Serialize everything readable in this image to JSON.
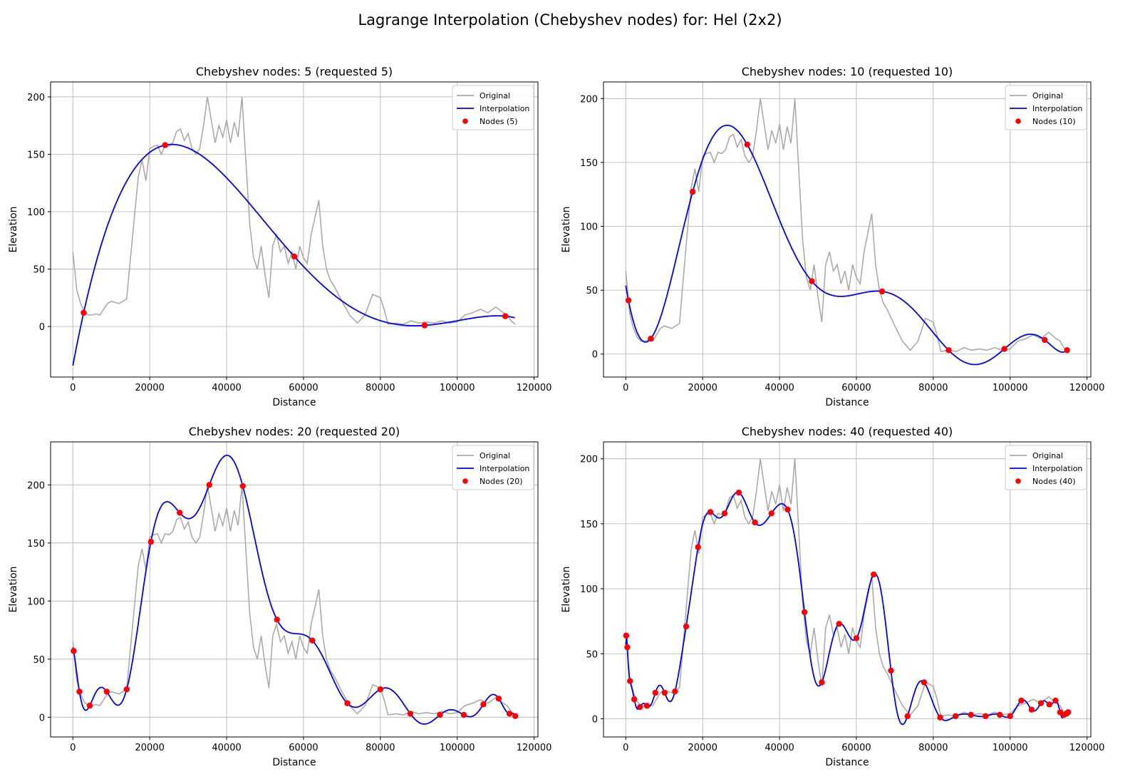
{
  "figure": {
    "title": "Lagrange Interpolation (Chebyshev nodes) for: Hel (2x2)"
  },
  "colors": {
    "original": "#aaaaaa",
    "interpolation": "#0000ff",
    "nodes": "#ff0000",
    "grid": "#b0b0b0"
  },
  "chart_data": [
    {
      "type": "line",
      "title": "Chebyshev nodes: 5 (requested 5)",
      "xlabel": "Distance",
      "ylabel": "Elevation",
      "xlim": [
        -5800,
        121000
      ],
      "ylim": [
        -44,
        213
      ],
      "xticks": [
        0,
        20000,
        40000,
        60000,
        80000,
        100000,
        120000
      ],
      "yticks": [
        0,
        50,
        100,
        150,
        200
      ],
      "grid": true,
      "legend": "top-right",
      "legend_entries": [
        "Original",
        "Interpolation",
        "Nodes (5)"
      ],
      "original": {
        "x": [
          0,
          1000,
          2000,
          3000,
          4000,
          5000,
          6000,
          7000,
          8000,
          9000,
          10000,
          12000,
          14000,
          15000,
          16000,
          17000,
          18000,
          19000,
          20000,
          21000,
          22000,
          23000,
          24000,
          25000,
          26000,
          27000,
          28000,
          29000,
          30000,
          31000,
          32000,
          33000,
          34000,
          35000,
          36000,
          37000,
          38000,
          39000,
          40000,
          41000,
          42000,
          43000,
          44000,
          45000,
          46000,
          47000,
          48000,
          49000,
          50000,
          51000,
          52000,
          53000,
          54000,
          55000,
          56000,
          57000,
          58000,
          59000,
          60000,
          61000,
          62000,
          63000,
          64000,
          65000,
          66000,
          67000,
          68000,
          70000,
          72000,
          74000,
          76000,
          78000,
          80000,
          81000,
          82000,
          84000,
          86000,
          88000,
          90000,
          92000,
          94000,
          96000,
          98000,
          100000,
          102000,
          104000,
          106000,
          108000,
          110000,
          112000,
          113000,
          114000,
          115000
        ],
        "y": [
          65,
          32,
          20,
          13,
          10,
          10,
          11,
          10,
          15,
          20,
          22,
          20,
          24,
          60,
          95,
          130,
          145,
          127,
          155,
          157,
          158,
          150,
          158,
          157,
          160,
          170,
          172,
          162,
          168,
          155,
          150,
          155,
          175,
          200,
          180,
          160,
          175,
          165,
          180,
          160,
          178,
          165,
          200,
          145,
          90,
          60,
          50,
          70,
          45,
          25,
          70,
          80,
          65,
          70,
          55,
          65,
          50,
          70,
          60,
          55,
          80,
          95,
          110,
          70,
          50,
          40,
          35,
          22,
          10,
          3,
          10,
          28,
          25,
          15,
          2,
          3,
          2,
          5,
          3,
          4,
          3,
          5,
          3,
          4,
          10,
          12,
          15,
          12,
          17,
          12,
          10,
          5,
          2
        ]
      },
      "nodes": {
        "x": [
          2800,
          24000,
          57600,
          91500,
          112500
        ],
        "y": [
          12,
          158,
          61,
          1,
          9
        ]
      }
    },
    {
      "type": "line",
      "title": "Chebyshev nodes: 10 (requested 10)",
      "xlabel": "Distance",
      "ylabel": "Elevation",
      "xlim": [
        -5800,
        121000
      ],
      "ylim": [
        -18,
        213
      ],
      "xticks": [
        0,
        20000,
        40000,
        60000,
        80000,
        100000,
        120000
      ],
      "yticks": [
        0,
        50,
        100,
        150,
        200
      ],
      "grid": true,
      "legend": "top-right",
      "legend_entries": [
        "Original",
        "Interpolation",
        "Nodes (10)"
      ],
      "nodes": {
        "x": [
          700,
          6500,
          17400,
          31600,
          48400,
          66700,
          84000,
          98500,
          109000,
          114800
        ],
        "y": [
          42,
          12,
          127,
          164,
          57,
          49,
          3,
          4,
          11,
          3
        ]
      }
    },
    {
      "type": "line",
      "title": "Chebyshev nodes: 20 (requested 20)",
      "xlabel": "Distance",
      "ylabel": "Elevation",
      "xlim": [
        -5800,
        121000
      ],
      "ylim": [
        -17,
        237
      ],
      "xticks": [
        0,
        20000,
        40000,
        60000,
        80000,
        100000,
        120000
      ],
      "yticks": [
        0,
        50,
        100,
        150,
        200
      ],
      "grid": true,
      "legend": "top-right",
      "legend_entries": [
        "Original",
        "Interpolation",
        "Nodes (20)"
      ],
      "nodes": {
        "x": [
          200,
          1700,
          4400,
          8800,
          14000,
          20300,
          27800,
          35500,
          44200,
          53100,
          62300,
          71400,
          80000,
          87800,
          95500,
          101700,
          106800,
          110800,
          113600,
          115100
        ],
        "y": [
          57,
          22,
          10,
          22,
          24,
          151,
          176,
          200,
          199,
          84,
          66,
          12,
          24,
          3,
          2,
          2,
          11,
          16,
          3,
          1
        ]
      }
    },
    {
      "type": "line",
      "title": "Chebyshev nodes: 40 (requested 40)",
      "xlabel": "Distance",
      "ylabel": "Elevation",
      "xlim": [
        -5800,
        121000
      ],
      "ylim": [
        -14,
        213
      ],
      "xticks": [
        0,
        20000,
        40000,
        60000,
        80000,
        100000,
        120000
      ],
      "yticks": [
        0,
        50,
        100,
        150,
        200
      ],
      "grid": true,
      "legend": "top-right",
      "legend_entries": [
        "Original",
        "Interpolation",
        "Nodes (40)"
      ],
      "nodes": {
        "x": [
          100,
          400,
          1100,
          2200,
          3700,
          5500,
          7700,
          10100,
          12800,
          15700,
          18800,
          22000,
          25700,
          29400,
          33600,
          37900,
          42100,
          46500,
          51000,
          55500,
          60000,
          64500,
          69000,
          73300,
          77600,
          81800,
          85800,
          89800,
          93600,
          97300,
          100000,
          102900,
          105600,
          108000,
          110200,
          111800,
          113000,
          114000,
          114700,
          115100
        ],
        "y": [
          64,
          55,
          29,
          15,
          9,
          10,
          20,
          20,
          21,
          71,
          132,
          159,
          158,
          174,
          151,
          158,
          161,
          82,
          28,
          73,
          62,
          111,
          37,
          2,
          28,
          1,
          2,
          3,
          2,
          3,
          2,
          14,
          7,
          12,
          11,
          14,
          5,
          3,
          4,
          5
        ]
      }
    }
  ]
}
